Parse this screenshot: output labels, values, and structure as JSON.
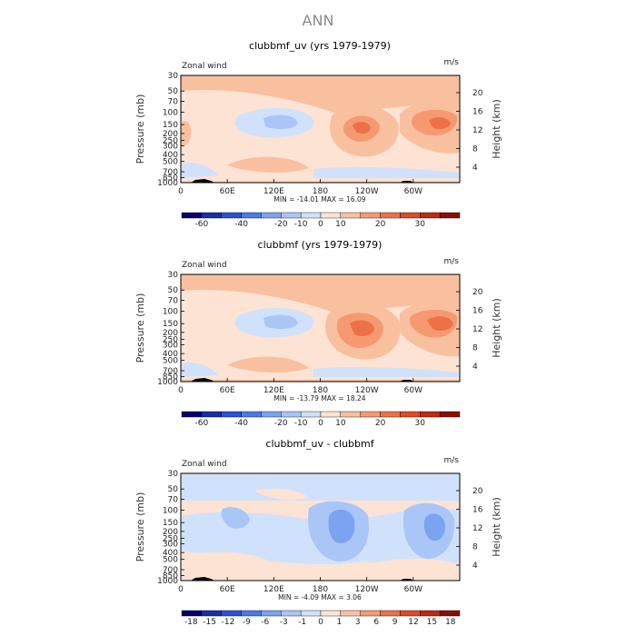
{
  "figure_title": "ANN",
  "colors": {
    "panel_bg": "#f9c0a0",
    "contour_base": "#fde3d3",
    "axis": "#000000"
  },
  "chart_data": [
    {
      "type": "heatmap",
      "title": "clubbmf_uv (yrs 1979-1979)",
      "left_label": "Zonal wind",
      "right_label": "m/s",
      "ylabel": "Pressure (mb)",
      "ylabel_right": "Height (km)",
      "x_ticks": [
        "0",
        "60E",
        "120E",
        "180",
        "120W",
        "60W"
      ],
      "y_ticks": [
        "30",
        "50",
        "70",
        "100",
        "150",
        "200",
        "250",
        "300",
        "400",
        "500",
        "700",
        "850",
        "1000"
      ],
      "height_ticks": [
        "20",
        "16",
        "12",
        "8",
        "4"
      ],
      "min_max": "MIN = -14.01   MAX =  16.09",
      "levels": [
        "-60",
        "-40",
        "-20",
        "-10",
        "0",
        "10",
        "20",
        "30"
      ],
      "colorbar": [
        "#08006e",
        "#1a2ea6",
        "#2b52d6",
        "#4a7ae8",
        "#7aa3f0",
        "#a9c6f6",
        "#d0e1fb",
        "#fde3d3",
        "#f9c0a0",
        "#f59a70",
        "#ee7048",
        "#e04a24",
        "#c02a10",
        "#8a0e04"
      ]
    },
    {
      "type": "heatmap",
      "title": "clubbmf (yrs 1979-1979)",
      "left_label": "Zonal wind",
      "right_label": "m/s",
      "ylabel": "Pressure (mb)",
      "ylabel_right": "Height (km)",
      "x_ticks": [
        "0",
        "60E",
        "120E",
        "180",
        "120W",
        "60W"
      ],
      "y_ticks": [
        "30",
        "50",
        "70",
        "100",
        "150",
        "200",
        "250",
        "300",
        "400",
        "500",
        "700",
        "850",
        "1000"
      ],
      "height_ticks": [
        "20",
        "16",
        "12",
        "8",
        "4"
      ],
      "min_max": "MIN = -13.79   MAX =  18.24",
      "levels": [
        "-60",
        "-40",
        "-20",
        "-10",
        "0",
        "10",
        "20",
        "30"
      ],
      "colorbar": [
        "#08006e",
        "#1a2ea6",
        "#2b52d6",
        "#4a7ae8",
        "#7aa3f0",
        "#a9c6f6",
        "#d0e1fb",
        "#fde3d3",
        "#f9c0a0",
        "#f59a70",
        "#ee7048",
        "#e04a24",
        "#c02a10",
        "#8a0e04"
      ]
    },
    {
      "type": "heatmap",
      "title": "clubbmf_uv - clubbmf",
      "left_label": "Zonal wind",
      "right_label": "m/s",
      "ylabel": "Pressure (mb)",
      "ylabel_right": "Height (km)",
      "x_ticks": [
        "0",
        "60E",
        "120E",
        "180",
        "120W",
        "60W"
      ],
      "y_ticks": [
        "30",
        "50",
        "70",
        "100",
        "150",
        "200",
        "250",
        "300",
        "400",
        "500",
        "700",
        "850",
        "1000"
      ],
      "height_ticks": [
        "20",
        "16",
        "12",
        "8",
        "4"
      ],
      "min_max": "MIN = -4.09   MAX =  3.06",
      "levels": [
        "-18",
        "-15",
        "-12",
        "-9",
        "-6",
        "-3",
        "-1",
        "0",
        "1",
        "3",
        "6",
        "9",
        "12",
        "15",
        "18"
      ],
      "colorbar": [
        "#08006e",
        "#1a2ea6",
        "#2b52d6",
        "#4a7ae8",
        "#7aa3f0",
        "#a9c6f6",
        "#d0e1fb",
        "#fde3d3",
        "#f9c0a0",
        "#f59a70",
        "#ee7048",
        "#e04a24",
        "#c02a10",
        "#8a0e04"
      ]
    }
  ]
}
